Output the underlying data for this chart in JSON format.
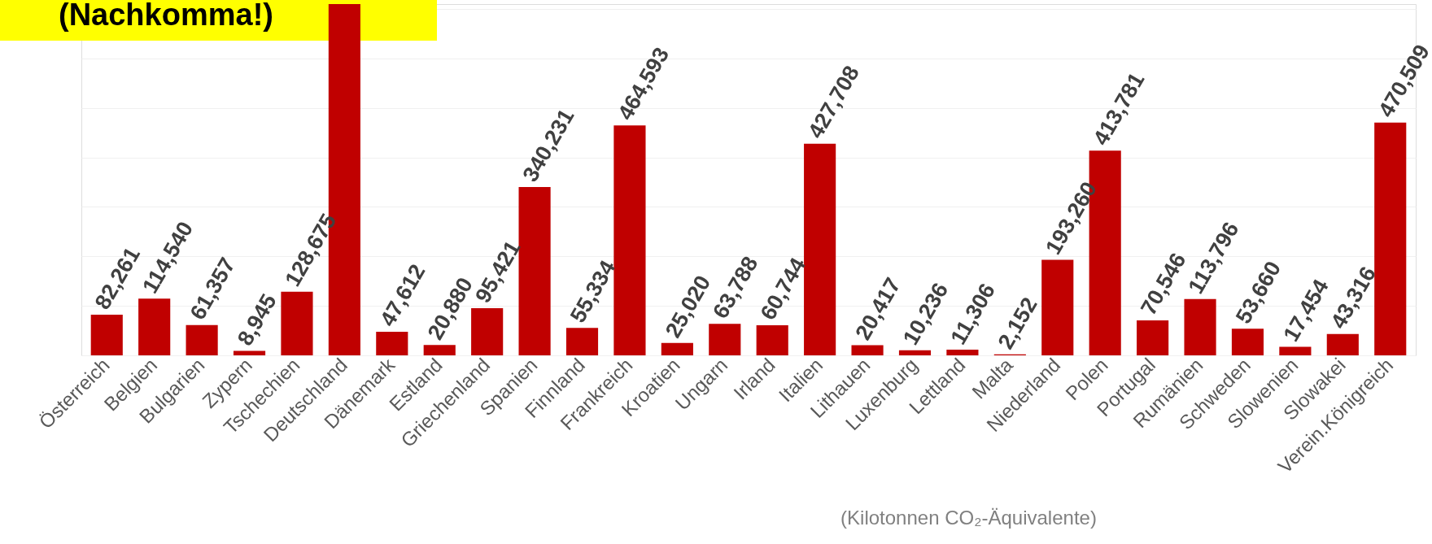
{
  "chart_data": {
    "type": "bar",
    "annotations": [
      "(Nachkomma!)"
    ],
    "xlabel": "(Kilotonnen CO₂-Äquivalente)",
    "categories": [
      "Österreich",
      "Belgien",
      "Bulgarien",
      "Zypern",
      "Tschechien",
      "Deutschland",
      "Dänemark",
      "Estland",
      "Griechenland",
      "Spanien",
      "Finnland",
      "Frankreich",
      "Kroatien",
      "Ungarn",
      "Irland",
      "Italien",
      "Lithauen",
      "Luxenburg",
      "Lettland",
      "Malta",
      "Niederland",
      "Polen",
      "Portugal",
      "Rumänien",
      "Schweden",
      "Slowenien",
      "Slowakei",
      "Verein.Königreich"
    ],
    "values": [
      82261,
      114540,
      61357,
      8945,
      128675,
      710000,
      47612,
      20880,
      95421,
      340231,
      55334,
      464593,
      25020,
      63788,
      60744,
      427708,
      20417,
      10236,
      11306,
      2152,
      193260,
      413781,
      70546,
      113796,
      53660,
      17454,
      43316,
      470509
    ],
    "value_labels": [
      "82,261",
      "114,540",
      "61,357",
      "8,945",
      "128,675",
      null,
      "47,612",
      "20,880",
      "95,421",
      "340,231",
      "55,334",
      "464,593",
      "25,020",
      "63,788",
      "60,744",
      "427,708",
      "20,417",
      "10,236",
      "11,306",
      "2,152",
      "193,260",
      "413,781",
      "70,546",
      "113,796",
      "53,660",
      "17,454",
      "43,316",
      "470,509"
    ],
    "color": "#c00000",
    "ylim": [
      0,
      710000
    ],
    "yticks": [
      {
        "value": 0,
        "label": null
      },
      {
        "value": 100000,
        "label": null
      },
      {
        "value": 200000,
        "label": null
      },
      {
        "value": 300000,
        "label": null
      },
      {
        "value": 400000,
        "label": null
      },
      {
        "value": 500000,
        "label": null
      },
      {
        "value": 600000,
        "label": null
      },
      {
        "value": 700000,
        "label": null
      }
    ],
    "grid": "y",
    "tick_labels": "x"
  }
}
